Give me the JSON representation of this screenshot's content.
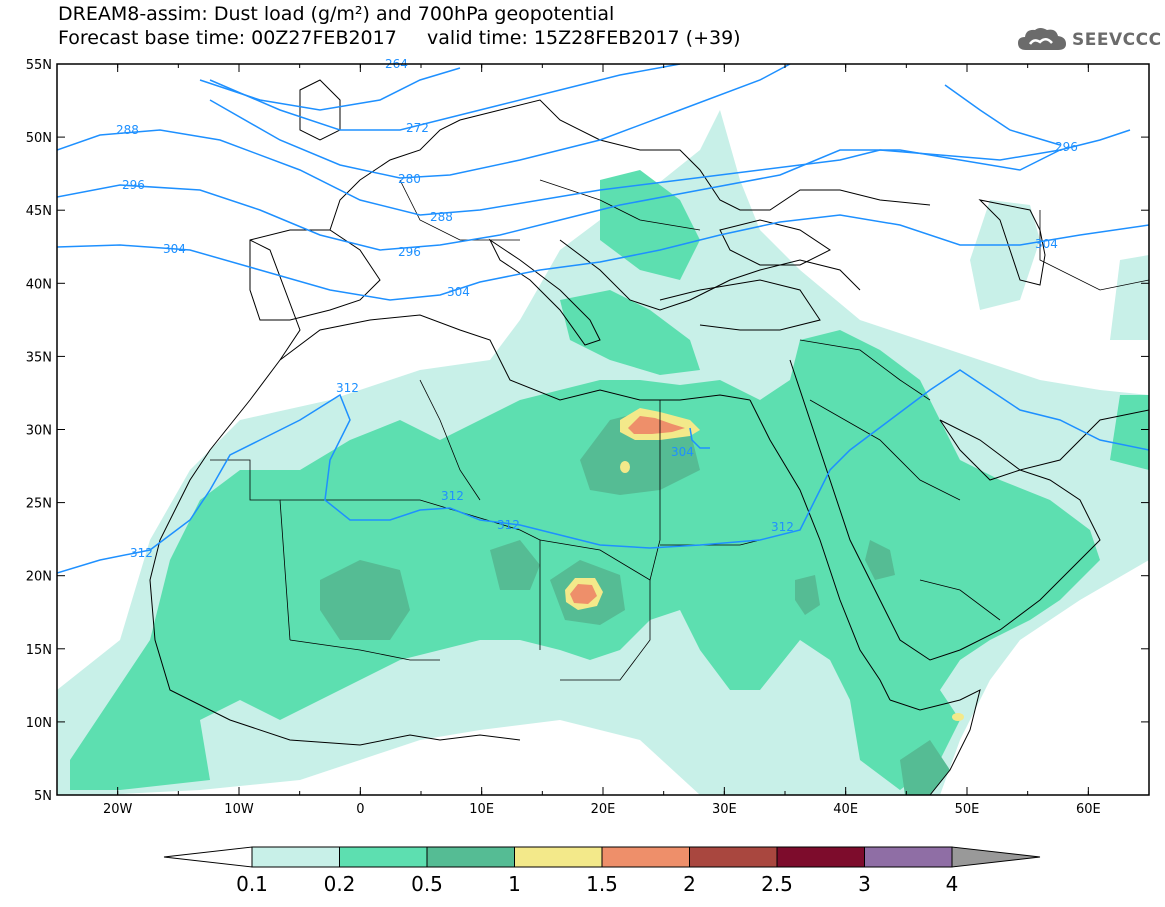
{
  "header": {
    "title_line1": "DREAM8-assim: Dust load (g/m²) and 700hPa geopotential",
    "title_line2": "Forecast base time: 00Z27FEB2017     valid time: 15Z28FEB2017 (+39)",
    "logo_text": "SEEVCCC"
  },
  "map": {
    "lon_labels": [
      "20W",
      "10W",
      "0",
      "10E",
      "20E",
      "30E",
      "40E",
      "50E",
      "60E"
    ],
    "lat_labels": [
      "55N",
      "50N",
      "45N",
      "40N",
      "35N",
      "30N",
      "25N",
      "20N",
      "15N",
      "10N",
      "5N"
    ],
    "lon_range": [
      -25,
      65
    ],
    "lat_range": [
      5,
      55
    ],
    "contour_color": "#1e90ff",
    "contour_labels": [
      "264",
      "272",
      "280",
      "288",
      "288",
      "296",
      "296",
      "296",
      "304",
      "304",
      "304",
      "304",
      "312",
      "312",
      "312",
      "312",
      "312"
    ]
  },
  "colorbar": {
    "ticks": [
      "0.1",
      "0.2",
      "0.5",
      "1",
      "1.5",
      "2",
      "2.5",
      "3",
      "4"
    ],
    "colors": [
      "#ffffff",
      "#c8f0e8",
      "#5ddfb0",
      "#55bc94",
      "#f3e98a",
      "#ee8f6a",
      "#a9473f",
      "#7d0c2c",
      "#8f6ea5",
      "#999999"
    ]
  }
}
